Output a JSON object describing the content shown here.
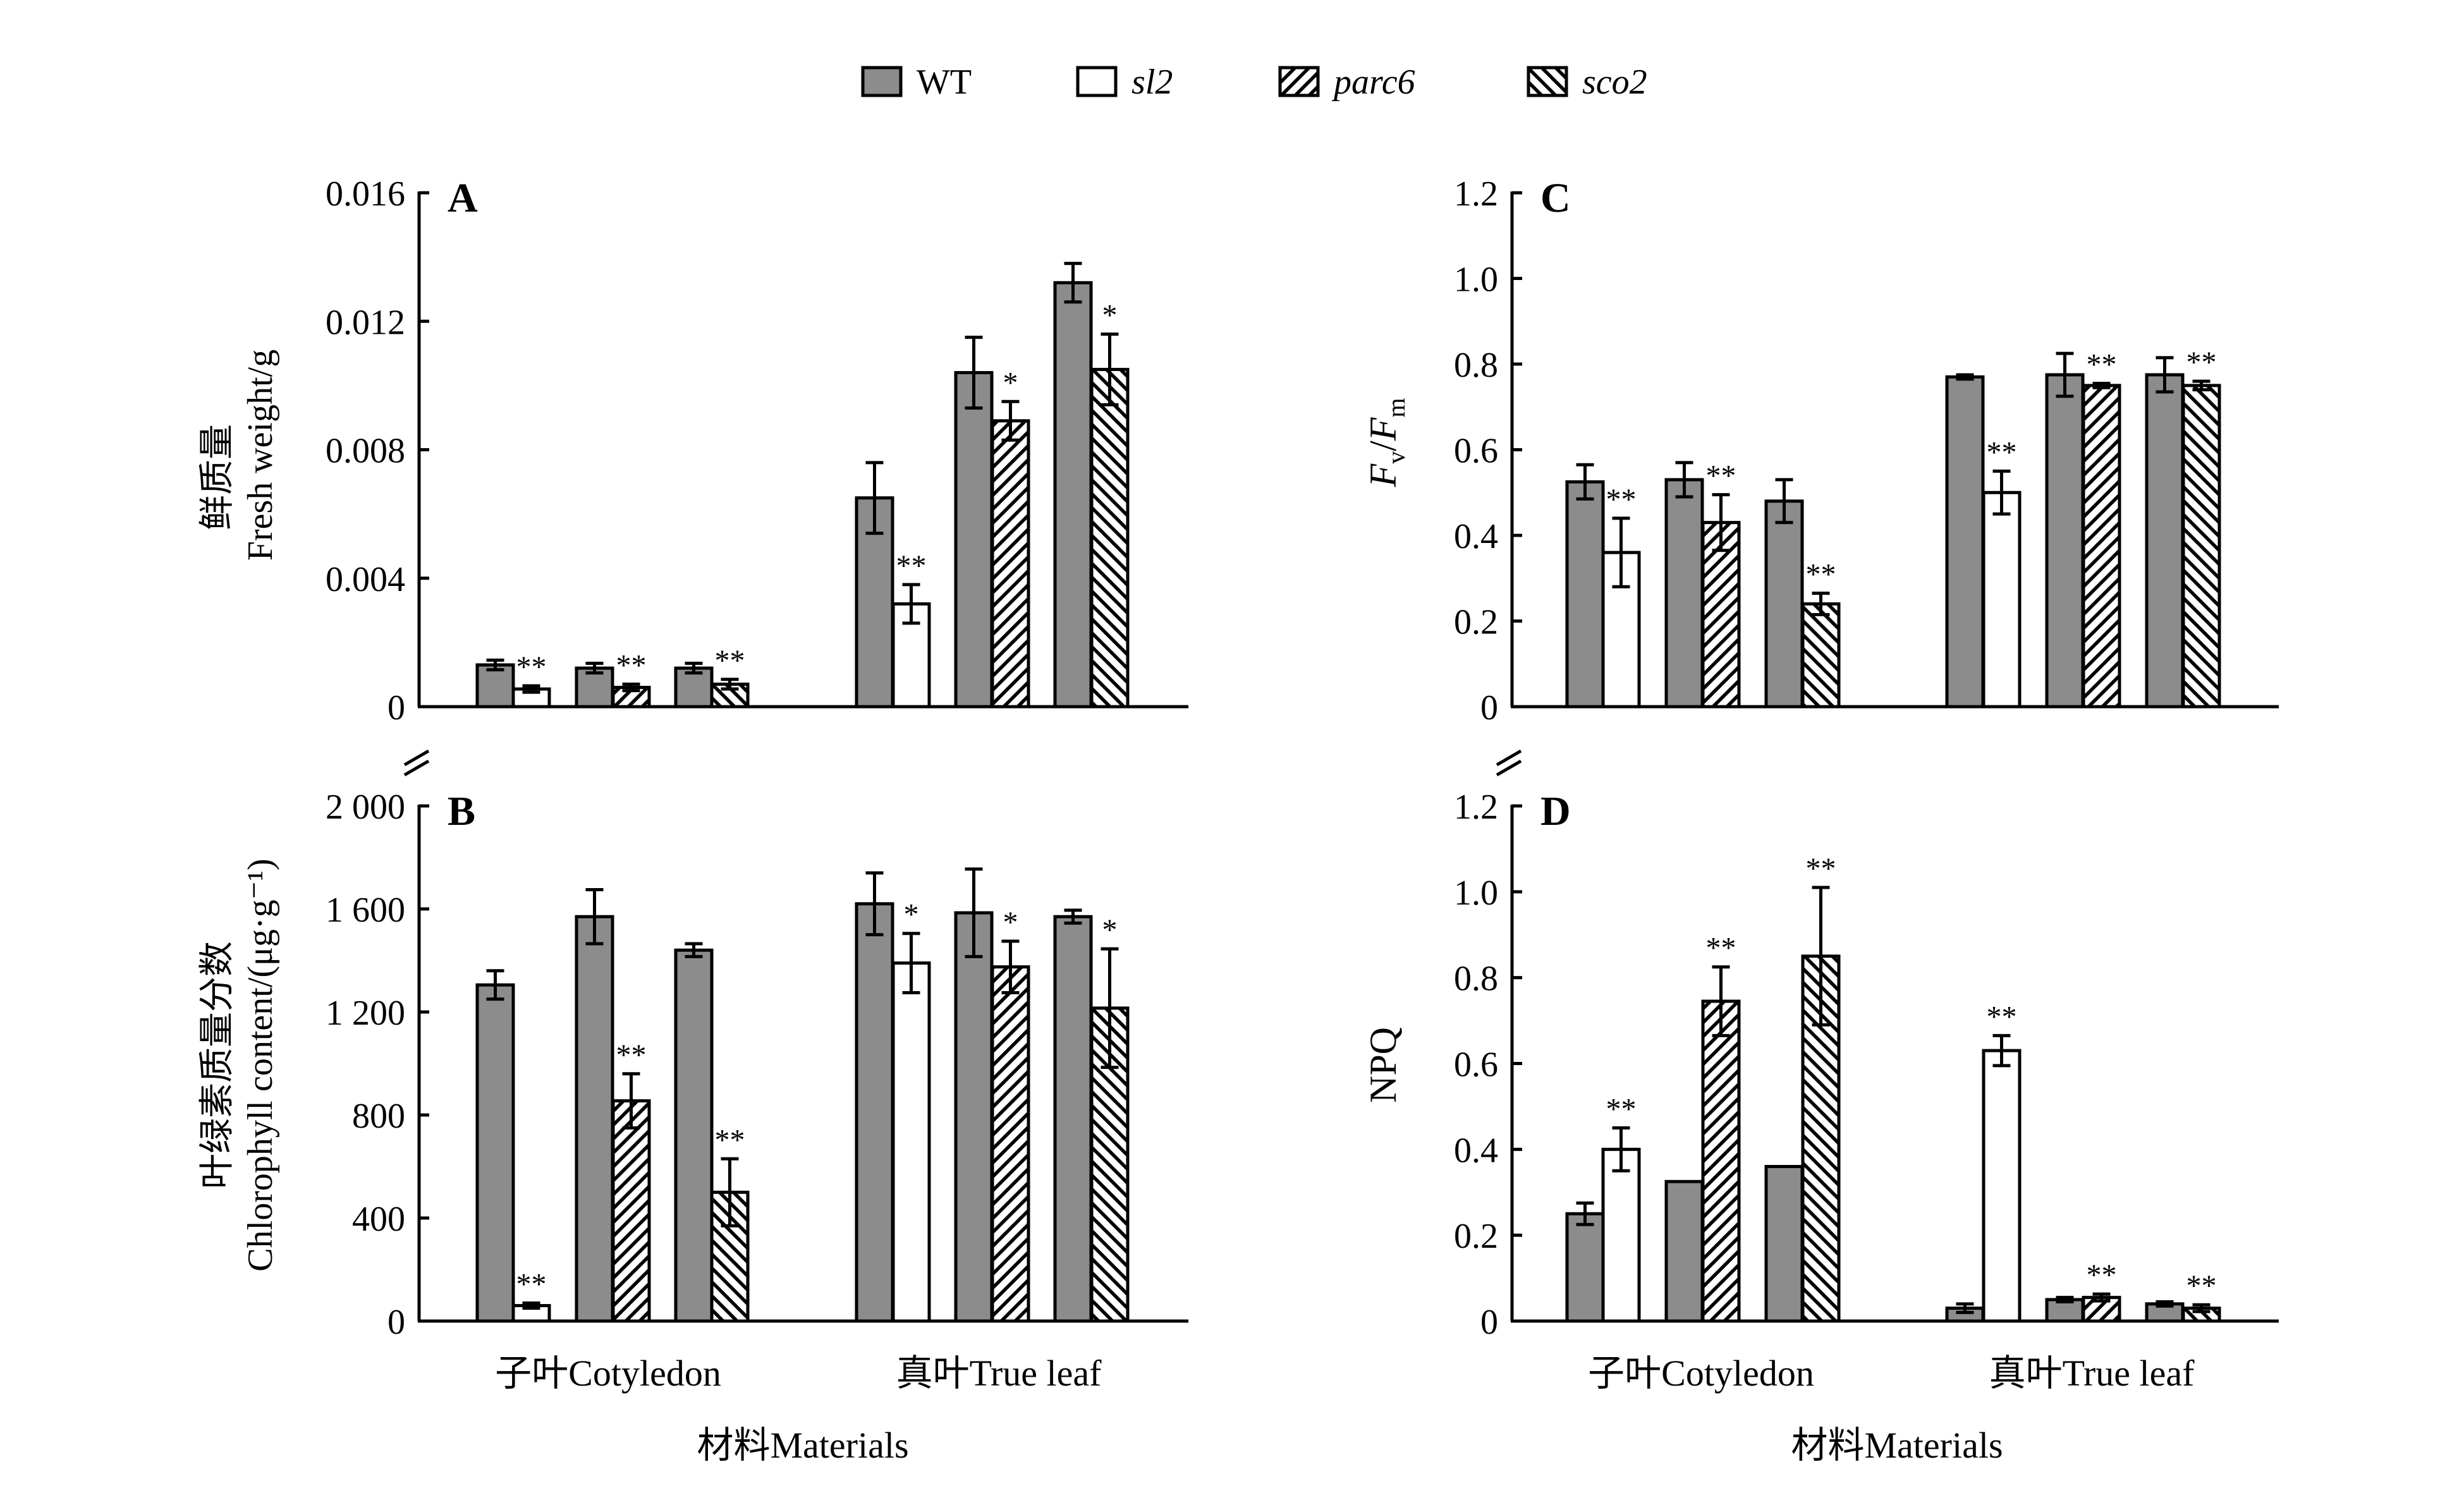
{
  "legend": {
    "items": [
      {
        "label": "WT",
        "pattern": "solid-gray",
        "italic": false
      },
      {
        "label": "sl2",
        "pattern": "white",
        "italic": true
      },
      {
        "label": "parc6",
        "pattern": "hatch-forward",
        "italic": true
      },
      {
        "label": "sco2",
        "pattern": "hatch-backward",
        "italic": true
      }
    ]
  },
  "colors": {
    "wt_fill": "#8c8c8c",
    "border": "#000000",
    "background": "#ffffff"
  },
  "x_axis": {
    "group_labels": [
      "子叶Cotyledon",
      "真叶True leaf"
    ],
    "title": "材料Materials"
  },
  "chart_data": [
    {
      "id": "A",
      "type": "bar",
      "panel_label": "A",
      "ylabel_lines": [
        "鲜质量",
        "Fresh weight/g"
      ],
      "ylim": [
        0,
        0.016
      ],
      "yticks": [
        0,
        0.004,
        0.008,
        0.012,
        0.016
      ],
      "ytick_labels": [
        "0",
        "0.004",
        "0.008",
        "0.012",
        "0.016"
      ],
      "groups": [
        {
          "group": "子叶Cotyledon",
          "pairs": [
            {
              "control": {
                "series": "WT",
                "value": 0.0013,
                "error": 0.00015
              },
              "mutant": {
                "series": "sl2",
                "value": 0.00055,
                "error": 0.0001
              },
              "sig": "**"
            },
            {
              "control": {
                "series": "WT",
                "value": 0.0012,
                "error": 0.00015
              },
              "mutant": {
                "series": "parc6",
                "value": 0.0006,
                "error": 0.0001
              },
              "sig": "**"
            },
            {
              "control": {
                "series": "WT",
                "value": 0.0012,
                "error": 0.00015
              },
              "mutant": {
                "series": "sco2",
                "value": 0.0007,
                "error": 0.00015
              },
              "sig": "**"
            }
          ]
        },
        {
          "group": "真叶True leaf",
          "pairs": [
            {
              "control": {
                "series": "WT",
                "value": 0.0065,
                "error": 0.0011
              },
              "mutant": {
                "series": "sl2",
                "value": 0.0032,
                "error": 0.0006
              },
              "sig": "**"
            },
            {
              "control": {
                "series": "WT",
                "value": 0.0104,
                "error": 0.0011
              },
              "mutant": {
                "series": "parc6",
                "value": 0.0089,
                "error": 0.0006
              },
              "sig": "*"
            },
            {
              "control": {
                "series": "WT",
                "value": 0.0132,
                "error": 0.0006
              },
              "mutant": {
                "series": "sco2",
                "value": 0.0105,
                "error": 0.0011
              },
              "sig": "*"
            }
          ]
        }
      ]
    },
    {
      "id": "B",
      "type": "bar",
      "panel_label": "B",
      "ylabel_lines": [
        "叶绿素质量分数",
        "Chlorophyll content/(μg·g⁻¹)"
      ],
      "ylim": [
        0,
        2000
      ],
      "yticks": [
        0,
        400,
        800,
        1200,
        1600,
        2000
      ],
      "ytick_labels": [
        "0",
        "400",
        "800",
        "1 200",
        "1 600",
        "2 000"
      ],
      "groups": [
        {
          "group": "子叶Cotyledon",
          "pairs": [
            {
              "control": {
                "series": "WT",
                "value": 1305,
                "error": 55
              },
              "mutant": {
                "series": "sl2",
                "value": 60,
                "error": 10
              },
              "sig": "**"
            },
            {
              "control": {
                "series": "WT",
                "value": 1570,
                "error": 105
              },
              "mutant": {
                "series": "parc6",
                "value": 855,
                "error": 105
              },
              "sig": "**"
            },
            {
              "control": {
                "series": "WT",
                "value": 1440,
                "error": 25
              },
              "mutant": {
                "series": "sco2",
                "value": 500,
                "error": 130
              },
              "sig": "**"
            }
          ]
        },
        {
          "group": "真叶True leaf",
          "pairs": [
            {
              "control": {
                "series": "WT",
                "value": 1620,
                "error": 120
              },
              "mutant": {
                "series": "sl2",
                "value": 1390,
                "error": 115
              },
              "sig": "*"
            },
            {
              "control": {
                "series": "WT",
                "value": 1585,
                "error": 170
              },
              "mutant": {
                "series": "parc6",
                "value": 1375,
                "error": 100
              },
              "sig": "*"
            },
            {
              "control": {
                "series": "WT",
                "value": 1570,
                "error": 25
              },
              "mutant": {
                "series": "sco2",
                "value": 1215,
                "error": 230
              },
              "sig": "*"
            }
          ]
        }
      ]
    },
    {
      "id": "C",
      "type": "bar",
      "panel_label": "C",
      "ylabel_fvfm": {
        "F1": "F",
        "sub1": "v",
        "slash": "/",
        "F2": "F",
        "sub2": "m"
      },
      "ylim": [
        0,
        1.2
      ],
      "yticks": [
        0,
        0.2,
        0.4,
        0.6,
        0.8,
        1.0,
        1.2
      ],
      "ytick_labels": [
        "0",
        "0.2",
        "0.4",
        "0.6",
        "0.8",
        "1.0",
        "1.2"
      ],
      "groups": [
        {
          "group": "子叶Cotyledon",
          "pairs": [
            {
              "control": {
                "series": "WT",
                "value": 0.525,
                "error": 0.04
              },
              "mutant": {
                "series": "sl2",
                "value": 0.36,
                "error": 0.08
              },
              "sig": "**"
            },
            {
              "control": {
                "series": "WT",
                "value": 0.53,
                "error": 0.04
              },
              "mutant": {
                "series": "parc6",
                "value": 0.43,
                "error": 0.065
              },
              "sig": "**"
            },
            {
              "control": {
                "series": "WT",
                "value": 0.48,
                "error": 0.05
              },
              "mutant": {
                "series": "sco2",
                "value": 0.24,
                "error": 0.025
              },
              "sig": "**"
            }
          ]
        },
        {
          "group": "真叶True leaf",
          "pairs": [
            {
              "control": {
                "series": "WT",
                "value": 0.77,
                "error": 0.005
              },
              "mutant": {
                "series": "sl2",
                "value": 0.5,
                "error": 0.05
              },
              "sig": "**"
            },
            {
              "control": {
                "series": "WT",
                "value": 0.775,
                "error": 0.05
              },
              "mutant": {
                "series": "parc6",
                "value": 0.75,
                "error": 0.005
              },
              "sig": "**"
            },
            {
              "control": {
                "series": "WT",
                "value": 0.775,
                "error": 0.04
              },
              "mutant": {
                "series": "sco2",
                "value": 0.75,
                "error": 0.01
              },
              "sig": "**"
            }
          ]
        }
      ]
    },
    {
      "id": "D",
      "type": "bar",
      "panel_label": "D",
      "ylabel_lines": [
        "NPQ"
      ],
      "ylim": [
        0,
        1.2
      ],
      "yticks": [
        0,
        0.2,
        0.4,
        0.6,
        0.8,
        1.0,
        1.2
      ],
      "ytick_labels": [
        "0",
        "0.2",
        "0.4",
        "0.6",
        "0.8",
        "1.0",
        "1.2"
      ],
      "groups": [
        {
          "group": "子叶Cotyledon",
          "pairs": [
            {
              "control": {
                "series": "WT",
                "value": 0.25,
                "error": 0.025
              },
              "mutant": {
                "series": "sl2",
                "value": 0.4,
                "error": 0.05
              },
              "sig": "**"
            },
            {
              "control": {
                "series": "WT",
                "value": 0.325,
                "error": 0
              },
              "mutant": {
                "series": "parc6",
                "value": 0.745,
                "error": 0.08
              },
              "sig": "**"
            },
            {
              "control": {
                "series": "WT",
                "value": 0.36,
                "error": 0
              },
              "mutant": {
                "series": "sco2",
                "value": 0.85,
                "error": 0.16
              },
              "sig": "**"
            }
          ]
        },
        {
          "group": "真叶True leaf",
          "pairs": [
            {
              "control": {
                "series": "WT",
                "value": 0.03,
                "error": 0.01
              },
              "mutant": {
                "series": "sl2",
                "value": 0.63,
                "error": 0.035
              },
              "sig": "**"
            },
            {
              "control": {
                "series": "WT",
                "value": 0.05,
                "error": 0.005
              },
              "mutant": {
                "series": "parc6",
                "value": 0.055,
                "error": 0.008
              },
              "sig": "**"
            },
            {
              "control": {
                "series": "WT",
                "value": 0.04,
                "error": 0.005
              },
              "mutant": {
                "series": "sco2",
                "value": 0.03,
                "error": 0.008
              },
              "sig": "**"
            }
          ]
        }
      ]
    }
  ]
}
